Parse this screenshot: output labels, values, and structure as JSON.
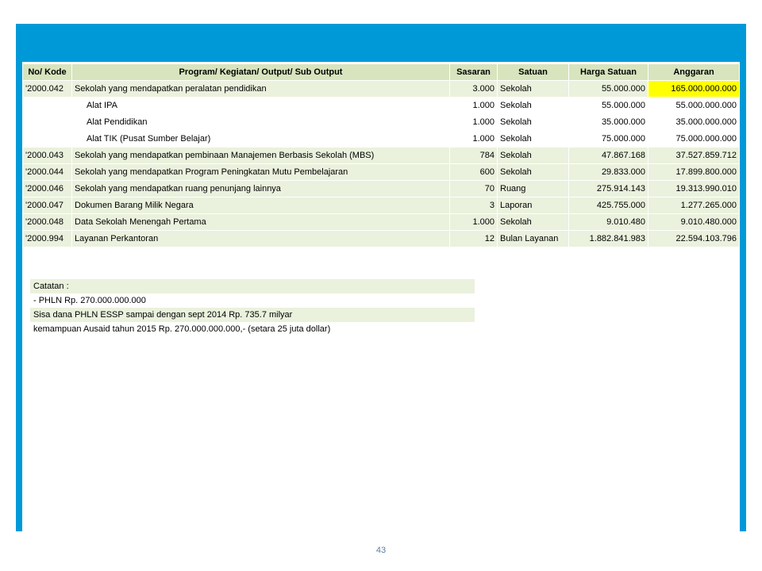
{
  "table": {
    "headers": {
      "kode": "No/ Kode",
      "program": "Program/ Kegiatan/ Output/ Sub Output",
      "sasaran": "Sasaran",
      "satuan": "Satuan",
      "harga": "Harga Satuan",
      "anggaran": "Anggaran"
    },
    "rows": [
      {
        "kode": "'2000.042",
        "program": "Sekolah yang mendapatkan peralatan pendidikan",
        "sasaran": "3.000",
        "satuan": "Sekolah",
        "harga": "55.000.000",
        "anggaran": "165.000.000.000",
        "alt": true,
        "highlight": true,
        "indent": false
      },
      {
        "kode": "",
        "program": "Alat IPA",
        "sasaran": "1.000",
        "satuan": "Sekolah",
        "harga": "55.000.000",
        "anggaran": "55.000.000.000",
        "alt": false,
        "highlight": false,
        "indent": true
      },
      {
        "kode": "",
        "program": "Alat Pendidikan",
        "sasaran": "1.000",
        "satuan": "Sekolah",
        "harga": "35.000.000",
        "anggaran": "35.000.000.000",
        "alt": false,
        "highlight": false,
        "indent": true
      },
      {
        "kode": "",
        "program": "Alat TIK (Pusat Sumber Belajar)",
        "sasaran": "1.000",
        "satuan": "Sekolah",
        "harga": "75.000.000",
        "anggaran": "75.000.000.000",
        "alt": false,
        "highlight": false,
        "indent": true
      },
      {
        "kode": "'2000.043",
        "program": "Sekolah yang mendapatkan pembinaan Manajemen Berbasis Sekolah (MBS)",
        "sasaran": "784",
        "satuan": "Sekolah",
        "harga": "47.867.168",
        "anggaran": "37.527.859.712",
        "alt": true,
        "highlight": false,
        "indent": false
      },
      {
        "kode": "'2000.044",
        "program": "Sekolah yang mendapatkan Program Peningkatan Mutu Pembelajaran",
        "sasaran": "600",
        "satuan": "Sekolah",
        "harga": "29.833.000",
        "anggaran": "17.899.800.000",
        "alt": true,
        "highlight": false,
        "indent": false
      },
      {
        "kode": "'2000.046",
        "program": "Sekolah yang mendapatkan ruang penunjang lainnya",
        "sasaran": "70",
        "satuan": "Ruang",
        "harga": "275.914.143",
        "anggaran": "19.313.990.010",
        "alt": true,
        "highlight": false,
        "indent": false
      },
      {
        "kode": "'2000.047",
        "program": "Dokumen Barang Milik Negara",
        "sasaran": "3",
        "satuan": "Laporan",
        "harga": "425.755.000",
        "anggaran": "1.277.265.000",
        "alt": true,
        "highlight": false,
        "indent": false
      },
      {
        "kode": "'2000.048",
        "program": "Data Sekolah Menengah Pertama",
        "sasaran": "1.000",
        "satuan": "Sekolah",
        "harga": "9.010.480",
        "anggaran": "9.010.480.000",
        "alt": true,
        "highlight": false,
        "indent": false
      },
      {
        "kode": "'2000.994",
        "program": "Layanan Perkantoran",
        "sasaran": "12",
        "satuan": "Bulan Layanan",
        "harga": "1.882.841.983",
        "anggaran": "22.594.103.796",
        "alt": true,
        "highlight": false,
        "indent": false
      }
    ]
  },
  "notes": {
    "lines": [
      {
        "text": "Catatan :",
        "alt": true
      },
      {
        "text": "- PHLN Rp. 270.000.000.000",
        "alt": false
      },
      {
        "text": "Sisa dana PHLN ESSP sampai dengan sept 2014 Rp. 735.7 milyar",
        "alt": true
      },
      {
        "text": "kemampuan Ausaid tahun 2015 Rp. 270.000.000.000,-  (setara 25 juta dollar)",
        "alt": false
      }
    ]
  },
  "page_number": "43",
  "colors": {
    "frame": "#0099d8",
    "header_bg": "#d7e4bd",
    "alt_bg": "#eaf1dd",
    "highlight": "#ffff00",
    "pagenum": "#5a7ca0"
  }
}
